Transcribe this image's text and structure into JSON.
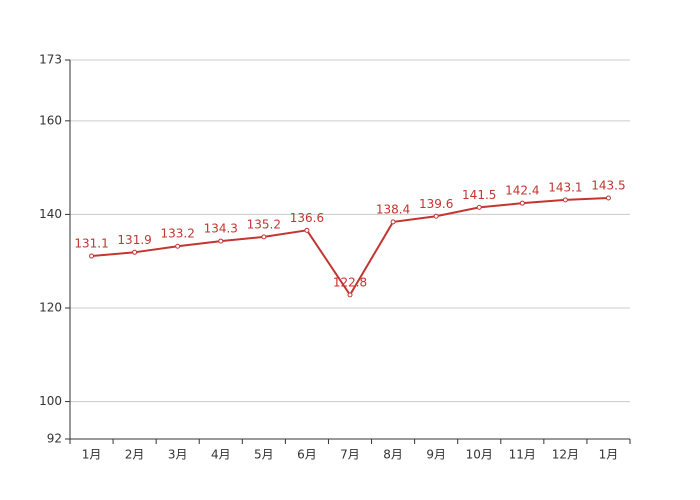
{
  "chart_data": {
    "type": "line",
    "categories": [
      "1月",
      "2月",
      "3月",
      "4月",
      "5月",
      "6月",
      "7月",
      "8月",
      "9月",
      "10月",
      "11月",
      "12月",
      "1月"
    ],
    "values": [
      131.1,
      131.9,
      133.2,
      134.3,
      135.2,
      136.6,
      122.8,
      138.4,
      139.6,
      141.5,
      142.4,
      143.1,
      143.5
    ],
    "color": "#c23531",
    "ylim": [
      92,
      173
    ],
    "yticks": [
      92,
      100,
      120,
      140,
      160,
      173
    ],
    "grid": true
  }
}
